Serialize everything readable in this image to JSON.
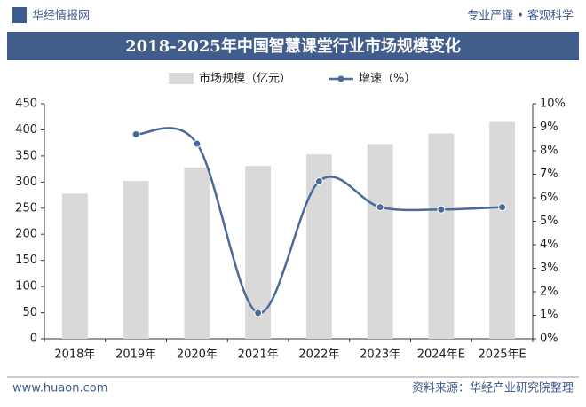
{
  "header": {
    "brand": "华经情报网",
    "slogan": "专业严谨 • 客观科学"
  },
  "footer": {
    "site": "www.huaon.com",
    "source": "资料来源：华经产业研究院整理"
  },
  "chart_data": {
    "type": "bar-line",
    "title": "2018-2025年中国智慧课堂行业市场规模变化",
    "categories": [
      "2018年",
      "2019年",
      "2020年",
      "2021年",
      "2022年",
      "2023年",
      "2024年E",
      "2025年E"
    ],
    "series": [
      {
        "name": "市场规模（亿元）",
        "type": "bar",
        "color": "#d9d9d9",
        "values": [
          278,
          302,
          328,
          331,
          353,
          373,
          393,
          415
        ]
      },
      {
        "name": "增速（%）",
        "type": "line",
        "axis": "y2",
        "color": "#4a6a9a",
        "values": [
          null,
          8.7,
          8.3,
          1.1,
          6.7,
          5.6,
          5.5,
          5.6
        ]
      }
    ],
    "ylim": [
      0,
      450
    ],
    "yticks": [
      0,
      50,
      100,
      150,
      200,
      250,
      300,
      350,
      400,
      450
    ],
    "y2lim": [
      0,
      10
    ],
    "y2ticks": [
      {
        "value": 0,
        "label": "0%"
      },
      {
        "value": 1,
        "label": "1%"
      },
      {
        "value": 2,
        "label": "2%"
      },
      {
        "value": 3,
        "label": "3%"
      },
      {
        "value": 4,
        "label": "4%"
      },
      {
        "value": 5,
        "label": "5%"
      },
      {
        "value": 6,
        "label": "6%"
      },
      {
        "value": 7,
        "label": "7%"
      },
      {
        "value": 8,
        "label": "8%"
      },
      {
        "value": 9,
        "label": "9%"
      },
      {
        "value": 10,
        "label": "10%"
      }
    ],
    "legend": "top"
  }
}
